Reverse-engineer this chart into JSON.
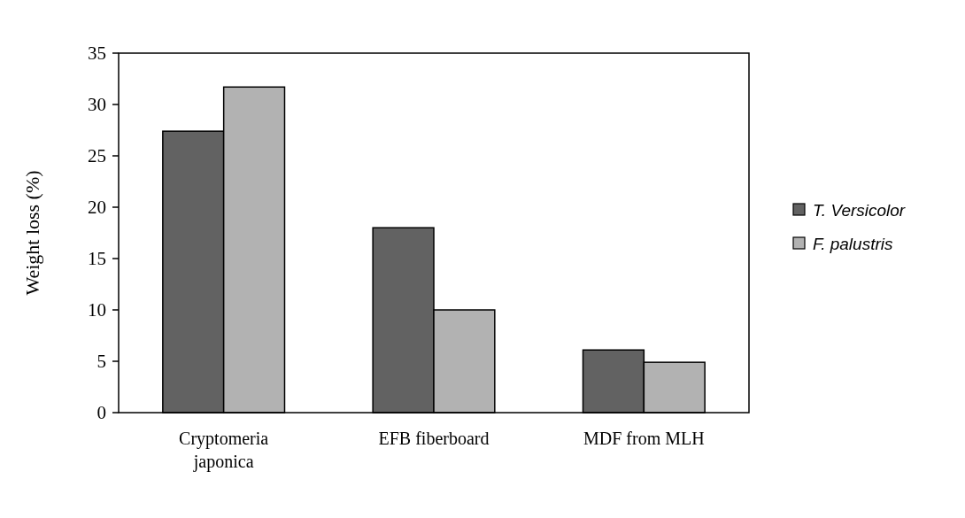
{
  "chart_data": {
    "type": "bar",
    "ylabel": "Weight loss (%)",
    "categories": [
      "Cryptomeria japonica",
      "EFB fiberboard",
      "MDF from MLH"
    ],
    "series": [
      {
        "name": "T. Versicolor",
        "color": "#626262",
        "values": [
          27.4,
          18.0,
          6.1
        ]
      },
      {
        "name": "F. palustris",
        "color": "#b2b2b2",
        "values": [
          31.7,
          10.0,
          4.9
        ]
      }
    ],
    "ylim": [
      0,
      35
    ],
    "yticks": [
      0,
      5,
      10,
      15,
      20,
      25,
      30,
      35
    ],
    "legend": "right"
  }
}
